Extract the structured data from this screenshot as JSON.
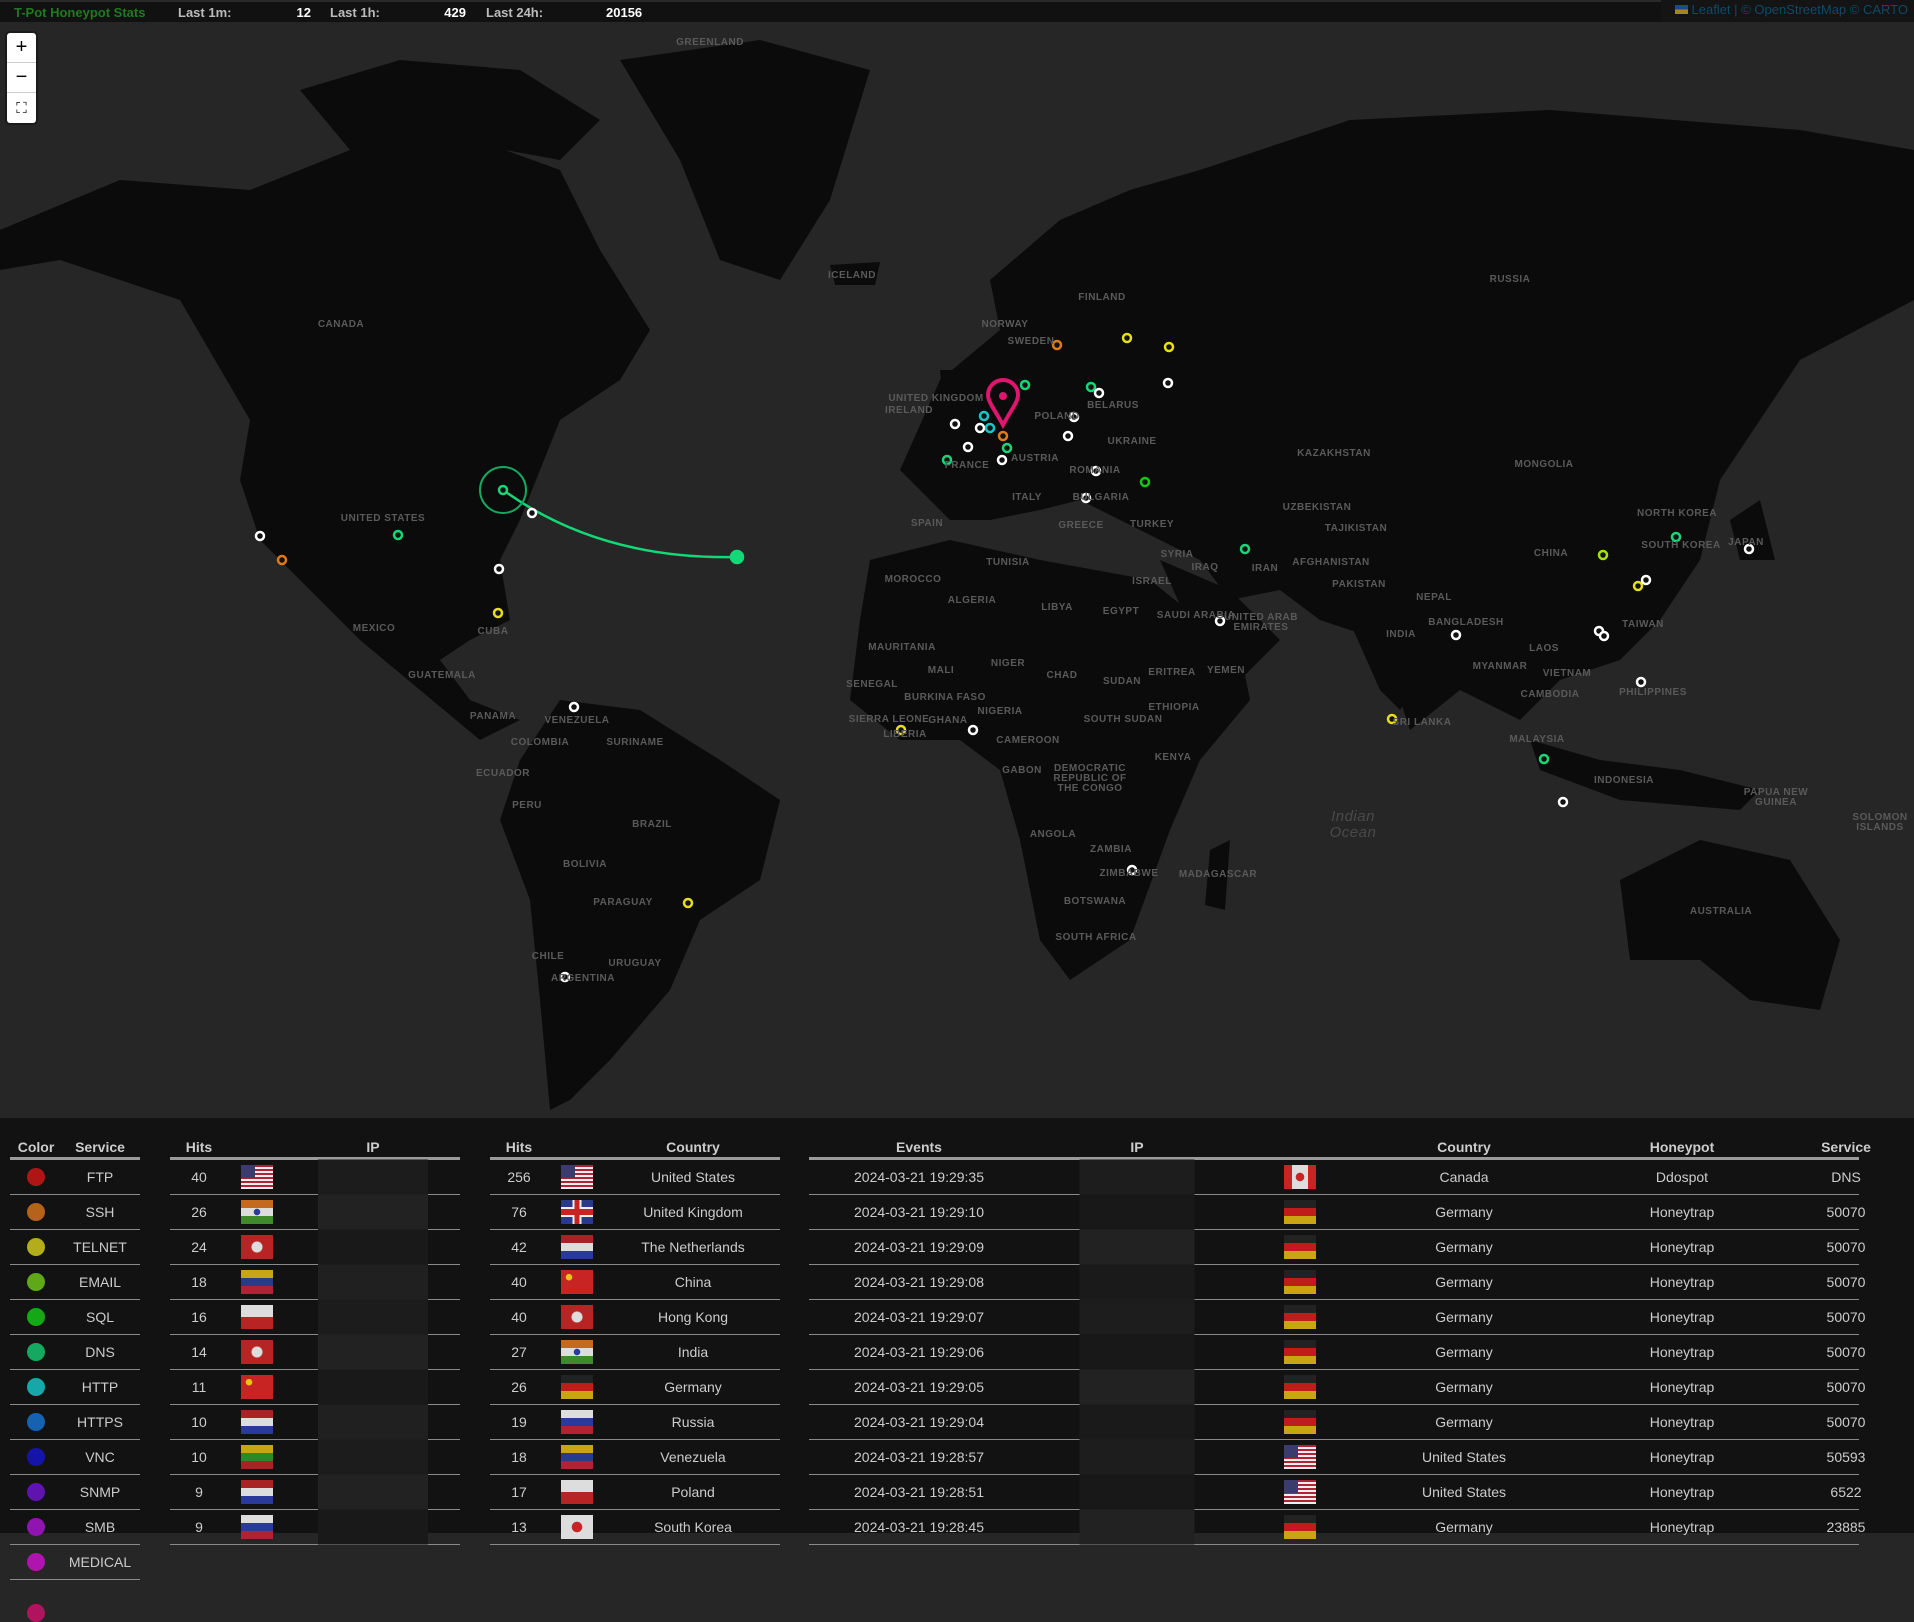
{
  "topbar": {
    "title": "T-Pot Honeypot Stats",
    "last_1m_label": "Last 1m:",
    "last_1m": "12",
    "last_1h_label": "Last 1h:",
    "last_1h": "429",
    "last_24h_label": "Last 24h:",
    "last_24h": "20156",
    "title_color": "#1f7a1f"
  },
  "attribution": {
    "leaflet": "Leaflet",
    "sep": "|",
    "osm": "© OpenStreetMap © CARTO"
  },
  "zoom": {
    "in": "+",
    "out": "−",
    "fullscreen": "⛶"
  },
  "map": {
    "labels": [
      "GREENLAND",
      "ICELAND",
      "CANADA",
      "RUSSIA",
      "FINLAND",
      "NORWAY",
      "SWEDEN",
      "UNITED KINGDOM",
      "IRELAND",
      "BELARUS",
      "POLAND",
      "UKRAINE",
      "FRANCE",
      "AUSTRIA",
      "ROMANIA",
      "ITALY",
      "BULGARIA",
      "SPAIN",
      "GREECE",
      "TURKEY",
      "KAZAKHSTAN",
      "MONGOLIA",
      "UZBEKISTAN",
      "TAJIKISTAN",
      "NORTH KOREA",
      "SOUTH KOREA",
      "JAPAN",
      "CHINA",
      "AFGHANISTAN",
      "IRAN",
      "IRAQ",
      "SYRIA",
      "ISRAEL",
      "TUNISIA",
      "MOROCCO",
      "ALGERIA",
      "LIBYA",
      "EGYPT",
      "SAUDI ARABIA",
      "PAKISTAN",
      "NEPAL",
      "INDIA",
      "BANGLADESH",
      "UNITED ARAB EMIRATES",
      "YEMEN",
      "MYANMAR",
      "TAIWAN",
      "LAOS",
      "VIETNAM",
      "CAMBODIA",
      "PHILIPPINES",
      "SRI LANKA",
      "MALAYSIA",
      "INDONESIA",
      "PAPUA NEW GUINEA",
      "SOLOMON ISLANDS",
      "AUSTRALIA",
      "MAURITANIA",
      "MALI",
      "NIGER",
      "CHAD",
      "SUDAN",
      "ERITREA",
      "ETHIOPIA",
      "SENEGAL",
      "BURKINA FASO",
      "NIGERIA",
      "GHANA",
      "SIERRA LEONE",
      "LIBERIA",
      "SOUTH SUDAN",
      "CAMEROON",
      "GABON",
      "DEMOCRATIC REPUBLIC OF THE CONGO",
      "KENYA",
      "ANGOLA",
      "ZAMBIA",
      "ZIMBABWE",
      "MADAGASCAR",
      "BOTSWANA",
      "SOUTH AFRICA",
      "UNITED STATES",
      "MEXICO",
      "CUBA",
      "GUATEMALA",
      "PANAMA",
      "VENEZUELA",
      "COLOMBIA",
      "SURINAME",
      "ECUADOR",
      "PERU",
      "BRAZIL",
      "BOLIVIA",
      "PARAGUAY",
      "CHILE",
      "URUGUAY",
      "ARGENTINA"
    ],
    "ocean_labels": [
      "Indian Ocean"
    ],
    "target_marker_color": "#e0156e"
  },
  "legend": {
    "headers": {
      "color": "Color",
      "service": "Service"
    },
    "items": [
      {
        "service": "FTP",
        "color": "#b01515"
      },
      {
        "service": "SSH",
        "color": "#b5621a"
      },
      {
        "service": "TELNET",
        "color": "#b3ad1a"
      },
      {
        "service": "EMAIL",
        "color": "#5fa818"
      },
      {
        "service": "SQL",
        "color": "#14a814"
      },
      {
        "service": "DNS",
        "color": "#14a860"
      },
      {
        "service": "HTTP",
        "color": "#14a8a8"
      },
      {
        "service": "HTTPS",
        "color": "#1462b0"
      },
      {
        "service": "VNC",
        "color": "#1414a8"
      },
      {
        "service": "SNMP",
        "color": "#5f14b0"
      },
      {
        "service": "SMB",
        "color": "#9014b0"
      },
      {
        "service": "MEDICAL",
        "color": "#b014b0"
      }
    ]
  },
  "top_ips": {
    "headers": {
      "hits": "Hits",
      "ip": "IP"
    },
    "rows": [
      {
        "hits": "40",
        "flag": "us"
      },
      {
        "hits": "26",
        "flag": "in"
      },
      {
        "hits": "24",
        "flag": "hk"
      },
      {
        "hits": "18",
        "flag": "ve"
      },
      {
        "hits": "16",
        "flag": "pl"
      },
      {
        "hits": "14",
        "flag": "hk"
      },
      {
        "hits": "11",
        "flag": "cn"
      },
      {
        "hits": "10",
        "flag": "nl"
      },
      {
        "hits": "10",
        "flag": "lt"
      },
      {
        "hits": "9",
        "flag": "nl"
      },
      {
        "hits": "9",
        "flag": "ru"
      }
    ]
  },
  "top_countries": {
    "headers": {
      "hits": "Hits",
      "country": "Country"
    },
    "rows": [
      {
        "hits": "256",
        "flag": "us",
        "country": "United States"
      },
      {
        "hits": "76",
        "flag": "gb",
        "country": "United Kingdom"
      },
      {
        "hits": "42",
        "flag": "nl",
        "country": "The Netherlands"
      },
      {
        "hits": "40",
        "flag": "cn",
        "country": "China"
      },
      {
        "hits": "40",
        "flag": "hk",
        "country": "Hong Kong"
      },
      {
        "hits": "27",
        "flag": "in",
        "country": "India"
      },
      {
        "hits": "26",
        "flag": "de",
        "country": "Germany"
      },
      {
        "hits": "19",
        "flag": "ru",
        "country": "Russia"
      },
      {
        "hits": "18",
        "flag": "ve",
        "country": "Venezuela"
      },
      {
        "hits": "17",
        "flag": "pl",
        "country": "Poland"
      },
      {
        "hits": "13",
        "flag": "kr",
        "country": "South Korea"
      }
    ]
  },
  "events": {
    "headers": {
      "time": "Events",
      "ip": "IP",
      "country": "Country",
      "honeypot": "Honeypot",
      "service": "Service"
    },
    "rows": [
      {
        "time": "2024-03-21 19:29:35",
        "flag": "ca",
        "country": "Canada",
        "honeypot": "Ddospot",
        "service": "DNS"
      },
      {
        "time": "2024-03-21 19:29:10",
        "flag": "de",
        "country": "Germany",
        "honeypot": "Honeytrap",
        "service": "50070"
      },
      {
        "time": "2024-03-21 19:29:09",
        "flag": "de",
        "country": "Germany",
        "honeypot": "Honeytrap",
        "service": "50070"
      },
      {
        "time": "2024-03-21 19:29:08",
        "flag": "de",
        "country": "Germany",
        "honeypot": "Honeytrap",
        "service": "50070"
      },
      {
        "time": "2024-03-21 19:29:07",
        "flag": "de",
        "country": "Germany",
        "honeypot": "Honeytrap",
        "service": "50070"
      },
      {
        "time": "2024-03-21 19:29:06",
        "flag": "de",
        "country": "Germany",
        "honeypot": "Honeytrap",
        "service": "50070"
      },
      {
        "time": "2024-03-21 19:29:05",
        "flag": "de",
        "country": "Germany",
        "honeypot": "Honeytrap",
        "service": "50070"
      },
      {
        "time": "2024-03-21 19:29:04",
        "flag": "de",
        "country": "Germany",
        "honeypot": "Honeytrap",
        "service": "50070"
      },
      {
        "time": "2024-03-21 19:28:57",
        "flag": "us",
        "country": "United States",
        "honeypot": "Honeytrap",
        "service": "50593"
      },
      {
        "time": "2024-03-21 19:28:51",
        "flag": "us",
        "country": "United States",
        "honeypot": "Honeytrap",
        "service": "6522"
      },
      {
        "time": "2024-03-21 19:28:45",
        "flag": "de",
        "country": "Germany",
        "honeypot": "Honeytrap",
        "service": "23885"
      }
    ]
  }
}
